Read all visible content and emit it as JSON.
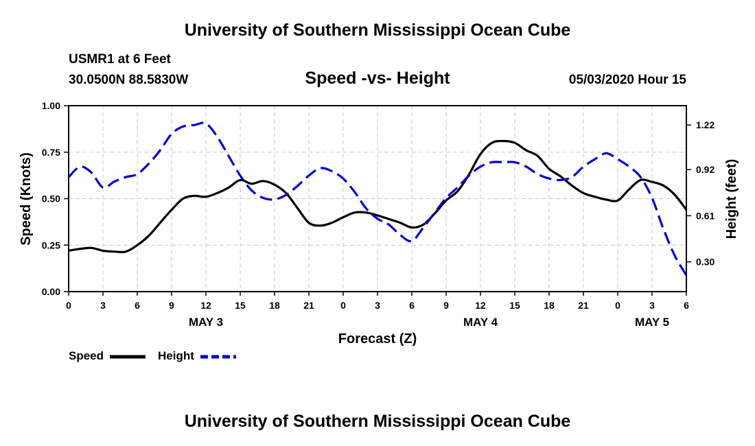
{
  "header": {
    "title": "University of Southern Mississippi Ocean Cube",
    "station": "USMR1 at 6 Feet",
    "coords": "30.0500N 88.5830W",
    "subtitle": "Speed -vs- Height",
    "datestamp": "05/03/2020 Hour 15"
  },
  "footer": {
    "title": "University of Southern Mississippi Ocean Cube"
  },
  "chart_data": {
    "type": "line",
    "title": "Speed -vs- Height",
    "xlabel": "Forecast (Z)",
    "ylabel": "Speed (Knots)",
    "y2label": "Height (feet)",
    "x_range_hours": [
      0,
      54
    ],
    "ylim": [
      0,
      1.0
    ],
    "y2lim": [
      0.1,
      1.35
    ],
    "y_ticks": [
      "0.00",
      "0.25",
      "0.50",
      "0.75",
      "1.00"
    ],
    "y2_ticks": [
      0.3,
      0.61,
      0.92,
      1.22
    ],
    "y2_tick_labels": [
      "0.30",
      "0.61",
      "0.92",
      "1.22"
    ],
    "x_ticks": [
      0,
      3,
      6,
      9,
      12,
      15,
      18,
      21,
      24,
      27,
      30,
      33,
      36,
      39,
      42,
      45,
      48,
      51,
      54
    ],
    "x_tick_labels": [
      "0",
      "3",
      "6",
      "9",
      "12",
      "15",
      "18",
      "21",
      "0",
      "3",
      "6",
      "9",
      "12",
      "15",
      "18",
      "21",
      "0",
      "3",
      "6"
    ],
    "day_labels": [
      {
        "hour": 12,
        "label": "MAY 3"
      },
      {
        "hour": 36,
        "label": "MAY 4"
      },
      {
        "hour": 51,
        "label": "MAY 5"
      }
    ],
    "grid": true,
    "legend_position": "bottom-left",
    "series": [
      {
        "name": "Speed",
        "axis": "left",
        "color": "#000000",
        "dash": "solid",
        "x": [
          0,
          1,
          2,
          3,
          4,
          5,
          6,
          7,
          8,
          9,
          10,
          11,
          12,
          13,
          14,
          15,
          16,
          17,
          18,
          19,
          20,
          21,
          22,
          23,
          24,
          25,
          26,
          27,
          28,
          29,
          30,
          31,
          32,
          33,
          34,
          35,
          36,
          37,
          38,
          39,
          40,
          41,
          42,
          43,
          44,
          45,
          46,
          47,
          48,
          49,
          50,
          51,
          52,
          53,
          54
        ],
        "values": [
          0.22,
          0.23,
          0.235,
          0.22,
          0.215,
          0.215,
          0.25,
          0.3,
          0.37,
          0.44,
          0.5,
          0.515,
          0.51,
          0.53,
          0.56,
          0.6,
          0.58,
          0.595,
          0.575,
          0.53,
          0.45,
          0.37,
          0.355,
          0.37,
          0.4,
          0.425,
          0.425,
          0.41,
          0.39,
          0.37,
          0.345,
          0.36,
          0.42,
          0.49,
          0.54,
          0.63,
          0.74,
          0.8,
          0.81,
          0.8,
          0.76,
          0.73,
          0.66,
          0.62,
          0.57,
          0.53,
          0.51,
          0.495,
          0.49,
          0.55,
          0.6,
          0.59,
          0.57,
          0.52,
          0.44
        ]
      },
      {
        "name": "Height",
        "axis": "right",
        "color": "#0000cc",
        "dash": "dashed",
        "x": [
          0,
          1,
          2,
          3,
          4,
          5,
          6,
          7,
          8,
          9,
          10,
          11,
          12,
          13,
          14,
          15,
          16,
          17,
          18,
          19,
          20,
          21,
          22,
          23,
          24,
          25,
          26,
          27,
          28,
          29,
          30,
          31,
          32,
          33,
          34,
          35,
          36,
          37,
          38,
          39,
          40,
          41,
          42,
          43,
          44,
          45,
          46,
          47,
          48,
          49,
          50,
          51,
          52,
          53,
          54
        ],
        "values": [
          0.87,
          0.94,
          0.9,
          0.8,
          0.84,
          0.87,
          0.89,
          0.96,
          1.05,
          1.16,
          1.21,
          1.22,
          1.23,
          1.14,
          1.01,
          0.88,
          0.78,
          0.73,
          0.72,
          0.75,
          0.81,
          0.88,
          0.93,
          0.91,
          0.86,
          0.77,
          0.66,
          0.59,
          0.55,
          0.48,
          0.44,
          0.53,
          0.63,
          0.73,
          0.8,
          0.88,
          0.94,
          0.97,
          0.97,
          0.97,
          0.94,
          0.89,
          0.86,
          0.85,
          0.87,
          0.94,
          0.99,
          1.03,
          0.99,
          0.94,
          0.87,
          0.73,
          0.52,
          0.34,
          0.21
        ]
      }
    ]
  }
}
